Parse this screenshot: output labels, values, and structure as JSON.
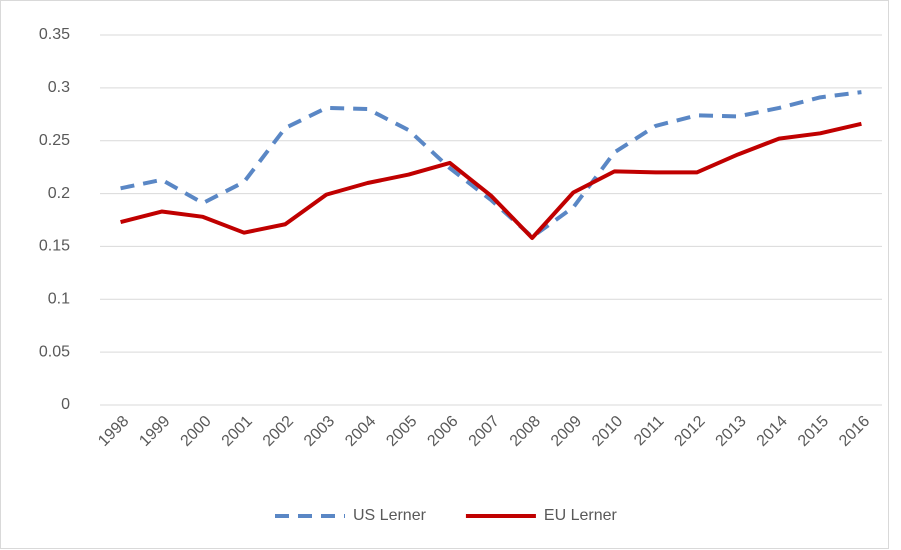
{
  "chart_data": {
    "type": "line",
    "categories": [
      "1998",
      "1999",
      "2000",
      "2001",
      "2002",
      "2003",
      "2004",
      "2005",
      "2006",
      "2007",
      "2008",
      "2009",
      "2010",
      "2011",
      "2012",
      "2013",
      "2014",
      "2015",
      "2016"
    ],
    "series": [
      {
        "name": "US Lerner",
        "color": "#5a87c5",
        "style": "dashed",
        "values": [
          0.205,
          0.213,
          0.191,
          0.211,
          0.262,
          0.281,
          0.28,
          0.26,
          0.224,
          0.194,
          0.159,
          0.187,
          0.239,
          0.264,
          0.274,
          0.273,
          0.281,
          0.291,
          0.296
        ]
      },
      {
        "name": "EU Lerner",
        "color": "#c00000",
        "style": "solid",
        "values": [
          0.173,
          0.183,
          0.178,
          0.163,
          0.171,
          0.199,
          0.21,
          0.218,
          0.229,
          0.198,
          0.158,
          0.201,
          0.221,
          0.22,
          0.22,
          0.237,
          0.252,
          0.257,
          0.266
        ]
      }
    ],
    "ylim": [
      0,
      0.35
    ],
    "yticks": [
      0,
      0.05,
      0.1,
      0.15,
      0.2,
      0.25,
      0.3,
      0.35
    ],
    "grid": true,
    "legend": "bottom"
  }
}
